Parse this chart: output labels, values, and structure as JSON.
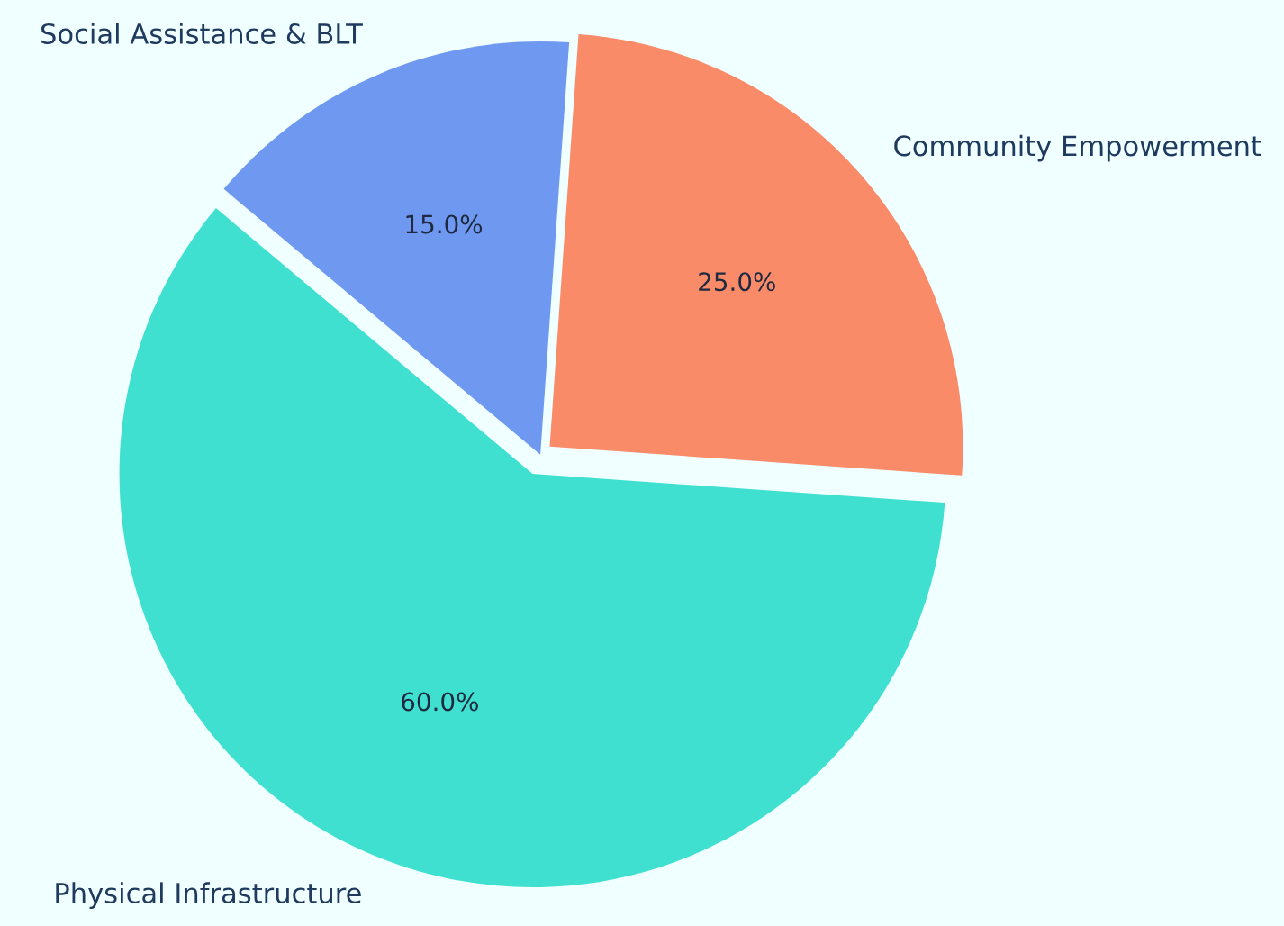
{
  "chart_data": {
    "type": "pie",
    "categories": [
      "Physical Infrastructure",
      "Community Empowerment",
      "Social Assistance & BLT"
    ],
    "values": [
      60,
      25,
      15
    ],
    "colors": [
      "#40e0d0",
      "#fa8b69",
      "#6f98f0"
    ],
    "value_labels": [
      "60.0%",
      "25.0%",
      "15.0%"
    ]
  }
}
